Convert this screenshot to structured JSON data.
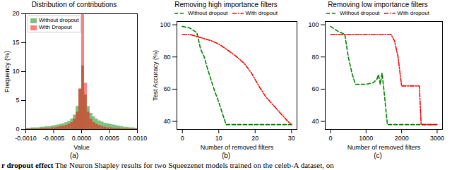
{
  "chart_data": [
    {
      "type": "histogram",
      "title": "Distribution of contributions",
      "xlabel": "Value",
      "ylabel": "Frequency (%)",
      "panel_label": "(a)",
      "bins": [
        -0.001,
        -0.00095,
        -0.0009,
        -0.00085,
        -0.0008,
        -0.00075,
        -0.0007,
        -0.00065,
        -0.0006,
        -0.00055,
        -0.0005,
        -0.00045,
        -0.0004,
        -0.00035,
        -0.0003,
        -0.00025,
        -0.0002,
        -0.00015,
        -0.0001,
        -5e-05,
        0,
        5e-05,
        0.0001,
        0.00015,
        0.0002,
        0.00025,
        0.0003,
        0.00035,
        0.0004,
        0.00045,
        0.0005,
        0.00055,
        0.0006,
        0.00065,
        0.0007,
        0.00075,
        0.0008,
        0.00085,
        0.0009,
        0.00095,
        0.001
      ],
      "series": [
        {
          "name": "Without dropout",
          "color": "green",
          "values": [
            0.2,
            0.2,
            0.3,
            0.3,
            0.3,
            0.4,
            0.4,
            0.5,
            0.5,
            0.6,
            0.7,
            0.8,
            0.9,
            1.0,
            1.2,
            1.4,
            1.8,
            2.5,
            4,
            7,
            11,
            6,
            4,
            2.8,
            2.2,
            1.8,
            1.5,
            1.3,
            1.1,
            1.0,
            0.9,
            0.8,
            0.7,
            0.6,
            0.5,
            0.4,
            0.4,
            0.3,
            0.3,
            0.2
          ]
        },
        {
          "name": "With Dropout",
          "color": "red",
          "values": [
            0.1,
            0.1,
            0.1,
            0.1,
            0.1,
            0.2,
            0.2,
            0.2,
            0.2,
            0.3,
            0.3,
            0.4,
            0.5,
            0.6,
            0.7,
            0.9,
            1.2,
            1.8,
            3,
            7,
            20,
            8,
            3,
            1.8,
            1.2,
            0.9,
            0.7,
            0.5,
            0.4,
            0.3,
            0.3,
            0.2,
            0.2,
            0.2,
            0.1,
            0.1,
            0.1,
            0.1,
            0.1,
            0.1
          ]
        }
      ],
      "xlim": [
        -0.001,
        0.001
      ],
      "xticks": [
        {
          "value": -0.001,
          "label": "-0.0010"
        },
        {
          "value": -0.0005,
          "label": "-0.0005"
        },
        {
          "value": 0,
          "label": "0.0000"
        },
        {
          "value": 0.0005,
          "label": "0.0005"
        },
        {
          "value": 0.001,
          "label": "0.0010"
        }
      ],
      "ylim": [
        0,
        20
      ],
      "yticks": [
        0,
        5,
        10,
        15,
        20
      ],
      "grid": false,
      "legend": "upper left"
    },
    {
      "type": "line",
      "title": "Removing high importance filters",
      "xlabel": "Number of removed filters",
      "ylabel": "Test Accuracy (%)",
      "panel_label": "(b)",
      "series": [
        {
          "name": "Without dropout",
          "color": "green",
          "line_style": "dashed",
          "x": [
            0,
            2,
            4,
            5,
            6,
            7,
            8,
            9,
            10,
            11,
            12,
            30
          ],
          "values": [
            99,
            98,
            95,
            85,
            80,
            72,
            65,
            58,
            52,
            45,
            38,
            38
          ]
        },
        {
          "name": "With dropout",
          "color": "red",
          "line_style": "dashdot",
          "x": [
            0,
            2,
            5,
            8,
            10,
            12,
            15,
            17,
            19,
            21,
            23,
            25,
            27,
            29,
            30
          ],
          "values": [
            94,
            94,
            92,
            90,
            88,
            85,
            80,
            76,
            70,
            62,
            55,
            50,
            45,
            40,
            38
          ]
        }
      ],
      "xlim": [
        -1.5,
        31.5
      ],
      "xticks": [
        0,
        10,
        20,
        30
      ],
      "ylim": [
        35,
        102
      ],
      "yticks": [
        40,
        60,
        80,
        100
      ],
      "grid": false,
      "legend": "top"
    },
    {
      "type": "line",
      "title": "Removing low importance filters",
      "xlabel": "Number of removed filters",
      "panel_label": "(c)",
      "series": [
        {
          "name": "Without dropout",
          "color": "green",
          "line_style": "dashed",
          "x": [
            0,
            200,
            400,
            500,
            600,
            700,
            1000,
            1200,
            1300,
            1350,
            1400,
            1450,
            1500,
            1600,
            3000
          ],
          "values": [
            99,
            96,
            94,
            80,
            70,
            63,
            63,
            64,
            66,
            69,
            63,
            70,
            60,
            38,
            38
          ]
        },
        {
          "name": "With dropout",
          "color": "red",
          "line_style": "dashdot",
          "x": [
            0,
            1700,
            1800,
            1900,
            2000,
            2500,
            2550,
            3000
          ],
          "values": [
            94,
            94,
            90,
            80,
            62,
            62,
            38,
            38
          ]
        }
      ],
      "xlim": [
        -150,
        3150
      ],
      "xticks": [
        0,
        1000,
        2000,
        3000
      ],
      "ylim": [
        35,
        102
      ],
      "yticks": [
        40,
        60,
        80,
        100
      ],
      "grid": false,
      "legend": "top"
    }
  ],
  "caption": {
    "bold": "r dropout effect",
    "text": "The Neuron Shapley results for two Squeezenet models trained on the celeb-A dataset, on"
  }
}
